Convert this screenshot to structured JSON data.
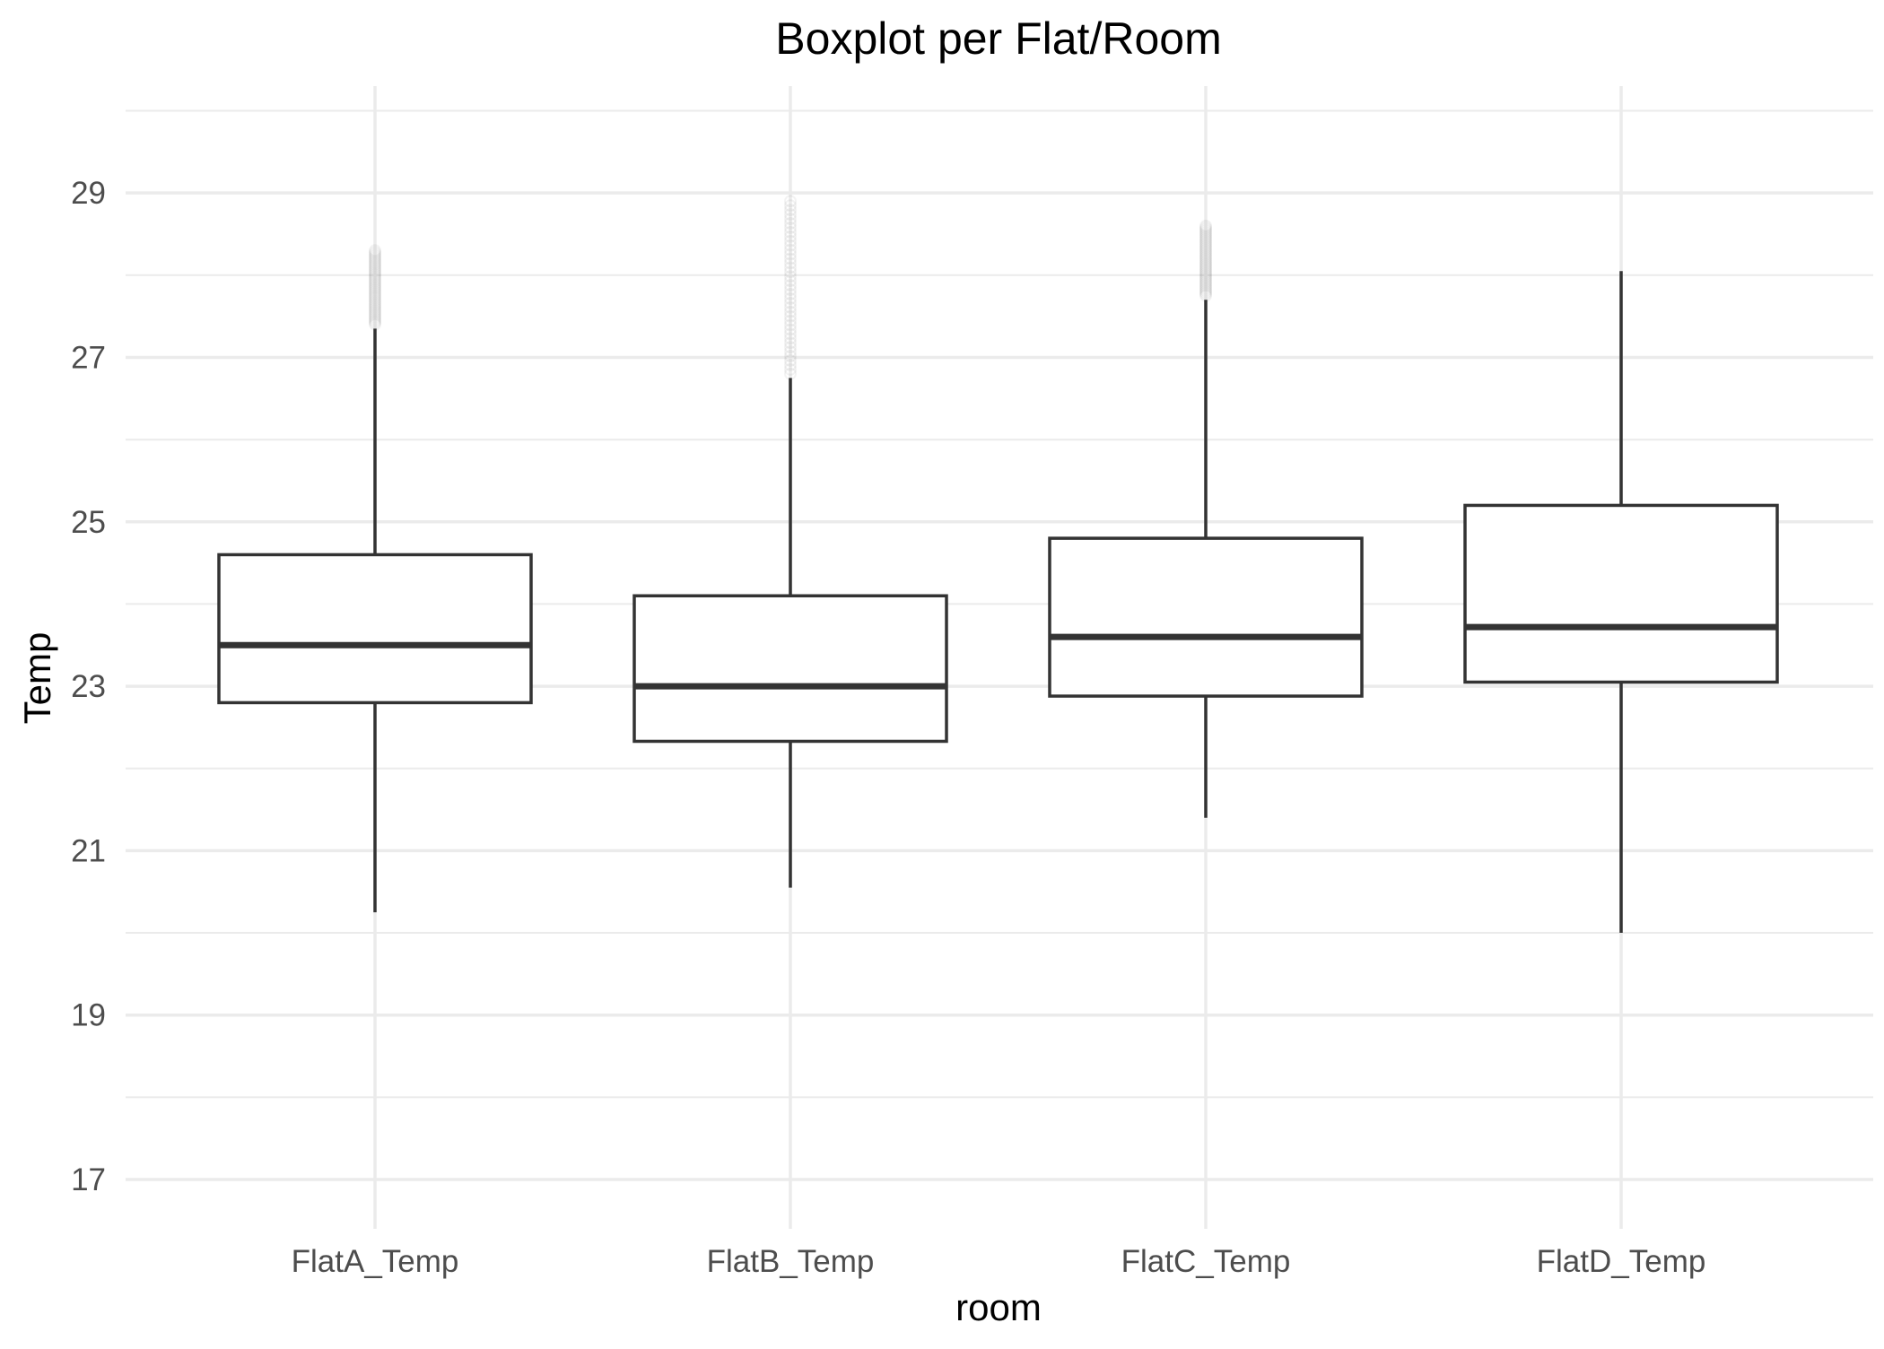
{
  "chart_data": {
    "type": "boxplot",
    "title": "Boxplot per Flat/Room",
    "xlabel": "room",
    "ylabel": "Temp",
    "categories": [
      "FlatA_Temp",
      "FlatB_Temp",
      "FlatC_Temp",
      "FlatD_Temp"
    ],
    "y_ticks": [
      17,
      19,
      21,
      23,
      25,
      27,
      29
    ],
    "ylim": [
      16.4,
      30.3
    ],
    "grid": true,
    "legend": "none",
    "boxes": [
      {
        "category": "FlatA_Temp",
        "whisker_low": 20.25,
        "q1": 22.8,
        "median": 23.5,
        "q3": 24.6,
        "whisker_high": 27.35,
        "outlier_range": [
          27.4,
          28.3
        ]
      },
      {
        "category": "FlatB_Temp",
        "whisker_low": 20.55,
        "q1": 22.33,
        "median": 23.0,
        "q3": 24.1,
        "whisker_high": 26.75,
        "outlier_range": [
          26.8,
          28.9
        ]
      },
      {
        "category": "FlatC_Temp",
        "whisker_low": 21.4,
        "q1": 22.88,
        "median": 23.6,
        "q3": 24.8,
        "whisker_high": 27.7,
        "outlier_range": [
          27.75,
          28.6
        ]
      },
      {
        "category": "FlatD_Temp",
        "whisker_low": 20.0,
        "q1": 23.05,
        "median": 23.72,
        "q3": 25.2,
        "whisker_high": 28.05,
        "outlier_range": []
      }
    ]
  }
}
